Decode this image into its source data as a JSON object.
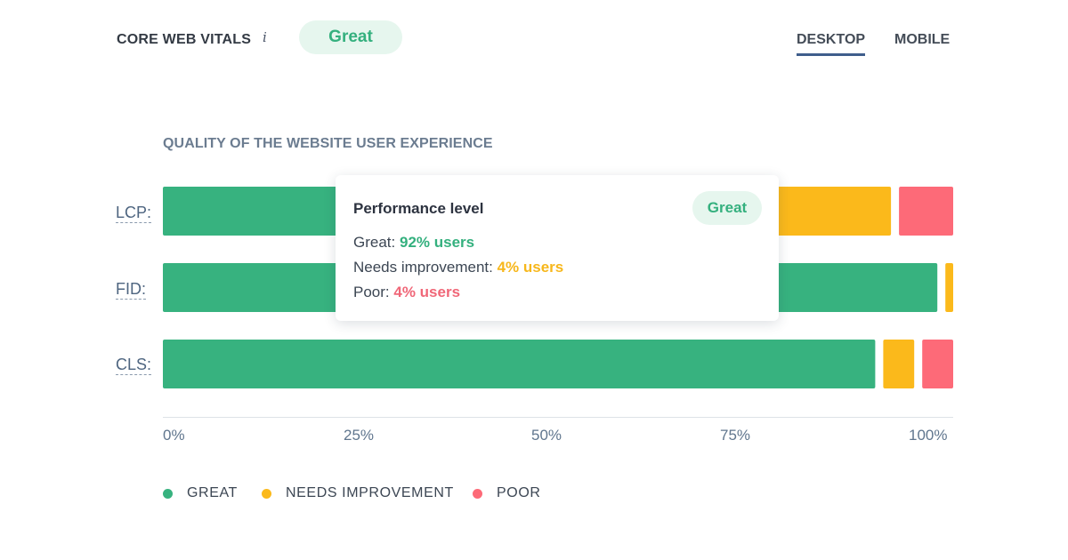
{
  "header": {
    "title": "CORE WEB VITALS",
    "info_icon": "i",
    "status": "Great",
    "tabs": [
      {
        "label": "DESKTOP",
        "active": true
      },
      {
        "label": "MOBILE",
        "active": false
      }
    ]
  },
  "colors": {
    "great": "#37b27f",
    "needs_improvement": "#fbb91b",
    "poor": "#fd6a78",
    "accent": "#3f5e8c"
  },
  "chart_data": {
    "type": "bar",
    "stacked": true,
    "orientation": "horizontal",
    "title": "QUALITY OF THE WEBSITE USER EXPERIENCE",
    "categories": [
      "LCP:",
      "FID:",
      "CLS:"
    ],
    "series": [
      {
        "name": "GREAT",
        "values": [
          78,
          99,
          92
        ]
      },
      {
        "name": "NEEDS IMPROVEMENT",
        "values": [
          15,
          1,
          4
        ]
      },
      {
        "name": "POOR",
        "values": [
          7,
          0,
          4
        ]
      }
    ],
    "xlim": [
      0,
      100
    ],
    "xticks": [
      "0%",
      "25%",
      "50%",
      "75%",
      "100%"
    ],
    "legend": [
      "GREAT",
      "NEEDS IMPROVEMENT",
      "POOR"
    ],
    "legend_position": "bottom",
    "grid": false
  },
  "tooltip": {
    "title": "Performance level",
    "badge": "Great",
    "great_label": "Great:",
    "great_value": "92% users",
    "ni_label": "Needs improvement:",
    "ni_value": "4% users",
    "poor_label": "Poor:",
    "poor_value": "4% users"
  }
}
